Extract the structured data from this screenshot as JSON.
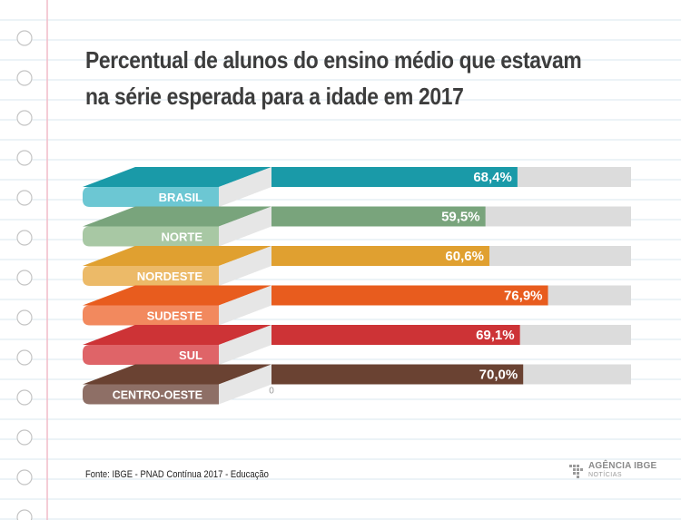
{
  "header": {
    "title": "Percentual de alunos do ensino médio que estavam na série esperada para a idade em 2017"
  },
  "chart_data": {
    "type": "bar",
    "orientation": "horizontal",
    "title": "Percentual de alunos do ensino médio que estavam na série esperada para a idade em 2017",
    "categories": [
      "BRASIL",
      "NORTE",
      "NORDESTE",
      "SUDESTE",
      "SUL",
      "CENTRO-OESTE"
    ],
    "values": [
      68.4,
      59.5,
      60.6,
      76.9,
      69.1,
      70.0
    ],
    "value_labels": [
      "68,4%",
      "59,5%",
      "60,6%",
      "76,9%",
      "69,1%",
      "70,0%"
    ],
    "colors": [
      "#1a9aa8",
      "#79a47c",
      "#e0a030",
      "#e85c1e",
      "#cd3336",
      "#6a4232"
    ],
    "label_colors": [
      "#6cc7d3",
      "#a8c8a4",
      "#ecba68",
      "#f2895e",
      "#df6468",
      "#8e6f66"
    ],
    "track_color": "#dcdcdc",
    "xlim": [
      0,
      100
    ],
    "zero_label": "0",
    "xlabel": "",
    "ylabel": "",
    "grid": false
  },
  "footer": {
    "source": "Fonte: IBGE - PNAD Contínua 2017 - Educação",
    "brand_name": "AGÊNCIA IBGE",
    "brand_sub": "NOTÍCIAS"
  }
}
